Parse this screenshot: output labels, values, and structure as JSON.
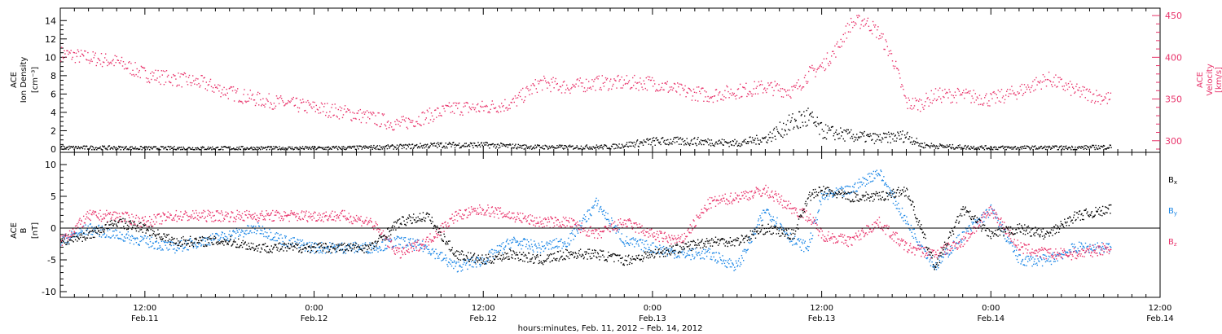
{
  "figure": {
    "xlabel": "hours:minutes, Feb. 11, 2012 – Feb. 14, 2012",
    "x_ticks": [
      {
        "time": "12:00",
        "date": "Feb.11",
        "h": 12
      },
      {
        "time": "0:00",
        "date": "Feb.12",
        "h": 24
      },
      {
        "time": "12:00",
        "date": "Feb.12",
        "h": 36
      },
      {
        "time": "0:00",
        "date": "Feb.13",
        "h": 48
      },
      {
        "time": "12:00",
        "date": "Feb.13",
        "h": 60
      },
      {
        "time": "0:00",
        "date": "Feb.14",
        "h": 72
      },
      {
        "time": "12:00",
        "date": "Feb.14",
        "h": 84
      }
    ],
    "x_range_hours": [
      6,
      84
    ]
  },
  "colors": {
    "density": "#000000",
    "velocity": "#e8326a",
    "bx": "#000000",
    "by": "#1a86e6",
    "bz": "#e8326a"
  },
  "panel1": {
    "ylabel_left_1": "ACE",
    "ylabel_left_2": "Ion Density",
    "ylabel_left_3": "[cm⁻³]",
    "ylabel_right_1": "ACE",
    "ylabel_right_2": "Velocity",
    "ylabel_right_3": "[km/s]",
    "y_left_ticks": [
      "0",
      "2",
      "4",
      "6",
      "8",
      "10",
      "12",
      "14"
    ],
    "y_right_ticks": [
      "300",
      "350",
      "400",
      "450"
    ]
  },
  "panel2": {
    "ylabel_1": "ACE",
    "ylabel_2": "B",
    "ylabel_3": "[nT]",
    "y_ticks": [
      "-10",
      "-5",
      "0",
      "5",
      "10"
    ],
    "legend": [
      {
        "base": "B",
        "sub": "x",
        "series": "bx"
      },
      {
        "base": "B",
        "sub": "y",
        "series": "by"
      },
      {
        "base": "B",
        "sub": "z",
        "series": "bz"
      }
    ]
  },
  "chart_data": [
    {
      "type": "scatter",
      "panel": "top",
      "xlabel": "hours:minutes, Feb. 11, 2012 – Feb. 14, 2012",
      "x_unit": "hours since Feb. 11, 2012 00:00",
      "series": [
        {
          "name": "Ion Density",
          "axis": "left",
          "ylim": [
            0,
            15
          ],
          "x": [
            6,
            9,
            12,
            15,
            18,
            21,
            24,
            27,
            30,
            33,
            36,
            39,
            42,
            45,
            48,
            51,
            54,
            56,
            58,
            59,
            60,
            62,
            64,
            66,
            67,
            69,
            72,
            75,
            78,
            80.5
          ],
          "y": [
            0.2,
            0.2,
            0.15,
            0.15,
            0.15,
            0.15,
            0.15,
            0.2,
            0.3,
            0.5,
            0.5,
            0.3,
            0.25,
            0.3,
            0.9,
            0.9,
            0.7,
            1.2,
            3,
            3.5,
            2,
            1.5,
            1.2,
            1.5,
            0.5,
            0.3,
            0.2,
            0.2,
            0.2,
            0.3
          ]
        },
        {
          "name": "Velocity",
          "axis": "right",
          "ylim": [
            290,
            455
          ],
          "x": [
            6,
            8,
            10,
            12,
            14,
            16,
            18,
            20,
            22,
            24,
            26,
            28,
            30,
            32,
            34,
            36,
            38,
            40,
            42,
            44,
            46,
            48,
            50,
            52,
            54,
            56,
            58,
            59,
            60,
            61,
            62,
            63,
            64,
            65,
            66,
            67,
            68,
            70,
            72,
            74,
            76,
            78,
            80.5
          ],
          "y": [
            405,
            400,
            395,
            380,
            375,
            370,
            358,
            350,
            345,
            340,
            335,
            328,
            320,
            330,
            340,
            340,
            345,
            370,
            365,
            370,
            370,
            370,
            360,
            355,
            360,
            365,
            360,
            380,
            390,
            410,
            440,
            445,
            430,
            400,
            345,
            345,
            355,
            355,
            350,
            360,
            375,
            360,
            350
          ]
        }
      ]
    },
    {
      "type": "scatter",
      "panel": "bottom",
      "ylabel": "B [nT]",
      "ylim": [
        -11,
        11
      ],
      "x_unit": "hours since Feb. 11, 2012 00:00",
      "series": [
        {
          "name": "Bx",
          "x": [
            6,
            8,
            10,
            12,
            14,
            16,
            18,
            20,
            22,
            24,
            26,
            28,
            30,
            32,
            34,
            36,
            38,
            40,
            42,
            44,
            46,
            48,
            50,
            52,
            54,
            56,
            58,
            59,
            60,
            62,
            64,
            66,
            68,
            70,
            72,
            74,
            76,
            78,
            80.5
          ],
          "y": [
            -2,
            -1,
            1,
            0,
            -2,
            -2,
            -2,
            -3,
            -3,
            -3,
            -3,
            -3,
            1,
            2,
            -4,
            -5,
            -4,
            -5,
            -4,
            -4,
            -5,
            -4,
            -3,
            -2,
            -2,
            0,
            -1,
            5,
            6,
            5,
            5,
            6,
            -6,
            3,
            -1,
            0,
            -1,
            2,
            3
          ]
        },
        {
          "name": "By",
          "x": [
            6,
            8,
            10,
            12,
            14,
            16,
            18,
            20,
            22,
            24,
            26,
            28,
            30,
            32,
            34,
            36,
            38,
            40,
            42,
            44,
            46,
            48,
            50,
            52,
            54,
            56,
            58,
            59,
            60,
            62,
            64,
            66,
            68,
            70,
            72,
            74,
            76,
            78,
            80.5
          ],
          "y": [
            -2,
            0,
            -1,
            -2,
            -3,
            -2,
            -1,
            0,
            -2,
            -3,
            -3,
            -3,
            -2,
            -3,
            -6,
            -5,
            -2,
            -3,
            -2,
            4,
            -2,
            -3,
            -4,
            -4,
            -6,
            3,
            -2,
            -3,
            5,
            6,
            9,
            1,
            -6,
            -1,
            3,
            -5,
            -5,
            -3,
            -3
          ]
        },
        {
          "name": "Bz",
          "x": [
            6,
            8,
            10,
            12,
            14,
            16,
            18,
            20,
            22,
            24,
            26,
            28,
            30,
            32,
            34,
            36,
            38,
            40,
            42,
            44,
            46,
            48,
            50,
            52,
            54,
            56,
            58,
            59,
            60,
            62,
            64,
            66,
            68,
            70,
            72,
            74,
            76,
            78,
            80.5
          ],
          "y": [
            -2,
            2,
            2,
            1,
            2,
            2,
            2,
            2,
            2,
            2,
            2,
            1,
            -4,
            -2,
            2,
            3,
            2,
            1,
            1,
            -1,
            1,
            -1,
            -2,
            4,
            5,
            6,
            3,
            2,
            -1,
            -2,
            1,
            -3,
            -4,
            -2,
            3,
            -3,
            -4,
            -4,
            -3
          ]
        }
      ]
    }
  ]
}
